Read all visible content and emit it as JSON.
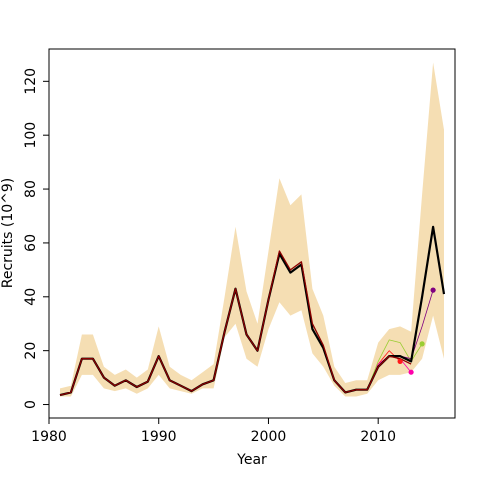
{
  "chart_data": {
    "type": "line",
    "title": "",
    "xlabel": "Year",
    "ylabel": "Recruits (10^9)",
    "xlim": [
      1980,
      2017
    ],
    "ylim": [
      -5,
      132
    ],
    "x_ticks": [
      1980,
      1990,
      2000,
      2010
    ],
    "y_ticks": [
      0,
      20,
      40,
      60,
      80,
      100,
      120
    ],
    "grid": false,
    "legend": "none",
    "colors": {
      "band": "#f5deb3",
      "main": "#000000",
      "overlay": "#8b0000",
      "retro_red": "#ff1a1a",
      "retro_magenta": "#ff00aa",
      "retro_green": "#9acd32",
      "retro_purple": "#800080"
    },
    "interval": {
      "x": [
        1981,
        1982,
        1983,
        1984,
        1985,
        1986,
        1987,
        1988,
        1989,
        1990,
        1991,
        1992,
        1993,
        1994,
        1995,
        1996,
        1997,
        1998,
        1999,
        2000,
        2001,
        2002,
        2003,
        2004,
        2005,
        2006,
        2007,
        2008,
        2009,
        2010,
        2011,
        2012,
        2013,
        2014,
        2015,
        2016
      ],
      "upper": [
        6,
        7,
        26,
        26,
        14,
        11,
        13,
        10,
        13,
        29,
        14,
        11,
        9,
        12,
        15,
        40,
        66,
        42,
        30,
        57,
        84,
        74,
        78,
        43,
        33,
        14,
        8,
        9,
        9,
        23,
        28,
        29,
        27,
        78,
        127,
        102
      ],
      "lower": [
        3,
        3,
        11,
        11,
        6,
        5,
        6,
        4,
        6,
        11,
        6,
        5,
        4,
        6,
        6,
        25,
        30,
        17,
        14,
        28,
        38,
        33,
        35,
        19,
        14,
        7,
        3,
        3,
        4,
        9,
        11,
        11,
        12,
        17,
        33,
        17
      ]
    },
    "series": [
      {
        "x": [
          1981,
          1982,
          1983,
          1984,
          1985,
          1986,
          1987,
          1988,
          1989,
          1990,
          1991,
          1992,
          1993,
          1994,
          1995,
          1996,
          1997,
          1998,
          1999,
          2000,
          2001,
          2002,
          2003,
          2004,
          2005,
          2006,
          2007,
          2008,
          2009,
          2010,
          2011,
          2012,
          2013,
          2014,
          2015,
          2016
        ],
        "values": [
          3.5,
          4.5,
          17,
          17,
          10,
          7,
          9,
          6.5,
          8.5,
          18,
          9,
          7,
          5,
          7.5,
          9,
          27,
          43,
          26,
          20,
          39,
          56,
          49,
          52,
          28,
          21,
          9,
          4.5,
          5.5,
          5.5,
          14,
          18,
          18,
          16,
          40,
          66,
          41
        ]
      },
      {
        "x": [
          1981,
          1982,
          1983,
          1984,
          1985,
          1986,
          1987,
          1988,
          1989,
          1990,
          1991,
          1992,
          1993,
          1994,
          1995,
          1996,
          1997,
          1998,
          1999,
          2000,
          2001,
          2002,
          2003,
          2004,
          2005,
          2006,
          2007,
          2008,
          2009,
          2010,
          2011,
          2012,
          2013
        ],
        "values": [
          3.5,
          4.5,
          17,
          17,
          10,
          7,
          9,
          6.5,
          8.5,
          18,
          9,
          7,
          5,
          7.5,
          9,
          27,
          43,
          26,
          20,
          39,
          57,
          50,
          53,
          30,
          22,
          9,
          4.5,
          5.5,
          5.5,
          14,
          18,
          17,
          15
        ]
      },
      {
        "x": [
          2009,
          2010,
          2011,
          2012
        ],
        "values": [
          5.5,
          15,
          20,
          16
        ]
      },
      {
        "x": [
          2009,
          2010,
          2011,
          2012,
          2013
        ],
        "values": [
          5.5,
          15,
          18,
          17,
          12
        ]
      },
      {
        "x": [
          2009,
          2010,
          2011,
          2012,
          2013,
          2014
        ],
        "values": [
          5.5,
          16,
          24,
          23,
          16,
          22.5
        ]
      },
      {
        "x": [
          2009,
          2010,
          2011,
          2012,
          2013,
          2014,
          2015
        ],
        "values": [
          5.5,
          14,
          18,
          18,
          17,
          29,
          42.5
        ]
      }
    ]
  }
}
